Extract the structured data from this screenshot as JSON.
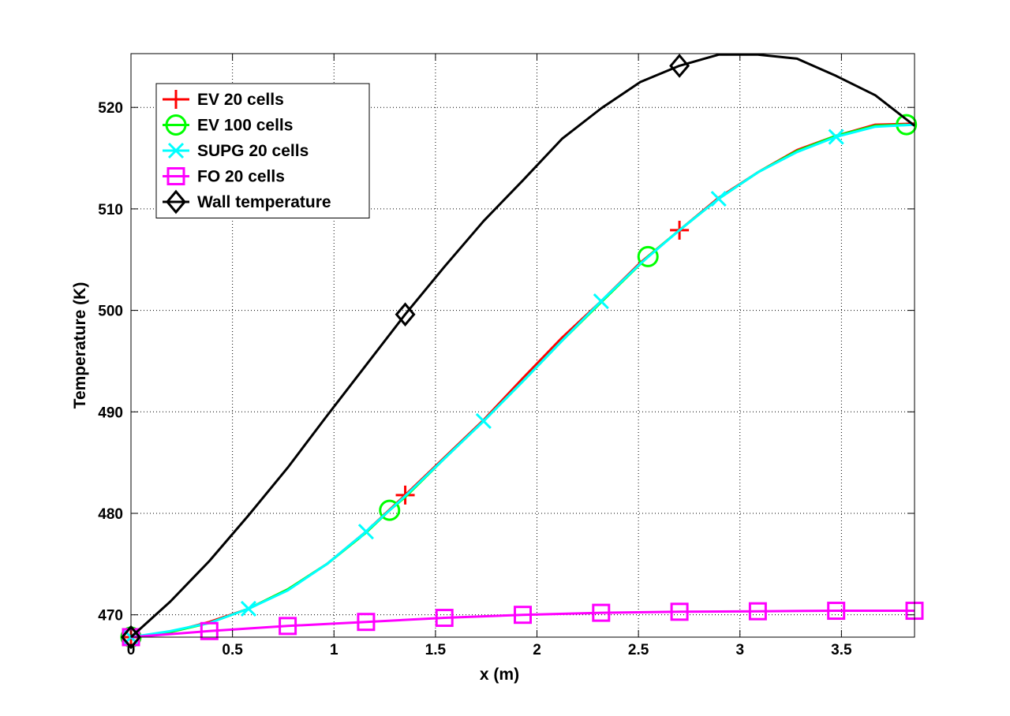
{
  "chart_data": {
    "type": "line",
    "title": "",
    "xlabel": "x (m)",
    "ylabel": "Temperature (K)",
    "xlim": [
      0,
      3.86
    ],
    "ylim": [
      467.8,
      525.3
    ],
    "grid": true,
    "legend_position": "top-left",
    "x_ticks": [
      {
        "value": 0,
        "label": "0"
      },
      {
        "value": 0.5,
        "label": "0.5"
      },
      {
        "value": 1,
        "label": "1"
      },
      {
        "value": 1.5,
        "label": "1.5"
      },
      {
        "value": 2,
        "label": "2"
      },
      {
        "value": 2.5,
        "label": "2.5"
      },
      {
        "value": 3,
        "label": "3"
      },
      {
        "value": 3.5,
        "label": "3.5"
      }
    ],
    "y_ticks": [
      {
        "value": 470,
        "label": "470"
      },
      {
        "value": 480,
        "label": "480"
      },
      {
        "value": 490,
        "label": "490"
      },
      {
        "value": 500,
        "label": "500"
      },
      {
        "value": 510,
        "label": "510"
      },
      {
        "value": 520,
        "label": "520"
      }
    ],
    "series": [
      {
        "name": "EV 20 cells",
        "color": "#ff0000",
        "marker": "plus",
        "x": [
          0,
          0.193,
          0.386,
          0.579,
          0.772,
          0.965,
          1.158,
          1.351,
          1.544,
          1.737,
          1.93,
          2.123,
          2.316,
          2.509,
          2.702,
          2.895,
          3.088,
          3.281,
          3.474,
          3.667,
          3.86
        ],
        "y": [
          467.8,
          468.3,
          469.3,
          470.6,
          472.5,
          475.0,
          478.2,
          481.8,
          485.5,
          489.2,
          493.3,
          497.3,
          500.9,
          504.7,
          507.9,
          511.1,
          513.6,
          515.8,
          517.2,
          518.3,
          518.4
        ],
        "marker_x": [
          0,
          1.351,
          2.702
        ],
        "marker_y": [
          467.8,
          481.8,
          507.9
        ]
      },
      {
        "name": "EV 100 cells",
        "color": "#00ff00",
        "marker": "circle",
        "x": [
          0,
          0.193,
          0.386,
          0.579,
          0.772,
          0.965,
          1.158,
          1.274,
          1.351,
          1.544,
          1.737,
          1.93,
          2.123,
          2.316,
          2.547,
          2.702,
          2.895,
          3.088,
          3.281,
          3.474,
          3.667,
          3.82
        ],
        "y": [
          467.8,
          468.3,
          469.2,
          470.6,
          472.5,
          475.0,
          478.1,
          480.3,
          481.6,
          485.4,
          489.1,
          493.0,
          497.0,
          500.8,
          505.3,
          507.9,
          511.0,
          513.6,
          515.7,
          517.2,
          518.2,
          518.3
        ],
        "marker_x": [
          0,
          1.274,
          2.547,
          3.82
        ],
        "marker_y": [
          467.8,
          480.3,
          505.3,
          518.3
        ]
      },
      {
        "name": "SUPG 20 cells",
        "color": "#00ffff",
        "marker": "x",
        "x": [
          0,
          0.193,
          0.386,
          0.579,
          0.772,
          0.965,
          1.158,
          1.351,
          1.544,
          1.737,
          1.93,
          2.123,
          2.316,
          2.509,
          2.702,
          2.895,
          3.088,
          3.281,
          3.474,
          3.667,
          3.86
        ],
        "y": [
          467.8,
          468.4,
          469.2,
          470.6,
          472.4,
          475.0,
          478.2,
          481.7,
          485.4,
          489.1,
          493.0,
          497.0,
          500.9,
          504.6,
          507.9,
          511.0,
          513.6,
          515.6,
          517.1,
          518.1,
          518.3
        ],
        "marker_x": [
          0,
          0.579,
          1.158,
          1.737,
          2.316,
          2.895,
          3.474
        ],
        "marker_y": [
          467.8,
          470.6,
          478.2,
          489.1,
          500.9,
          511.0,
          517.1
        ]
      },
      {
        "name": "FO 20 cells",
        "color": "#ff00ff",
        "marker": "square",
        "x": [
          0,
          0.386,
          0.772,
          1.158,
          1.544,
          1.93,
          2.316,
          2.702,
          3.088,
          3.474,
          3.86
        ],
        "y": [
          467.8,
          468.4,
          468.9,
          469.3,
          469.7,
          470.0,
          470.2,
          470.3,
          470.35,
          470.4,
          470.4
        ],
        "marker_x": [
          0,
          0.386,
          0.772,
          1.158,
          1.544,
          1.93,
          2.316,
          2.702,
          3.088,
          3.474,
          3.86
        ],
        "marker_y": [
          467.8,
          468.4,
          468.9,
          469.3,
          469.7,
          470.0,
          470.2,
          470.3,
          470.35,
          470.4,
          470.4
        ]
      },
      {
        "name": "Wall temperature",
        "color": "#000000",
        "marker": "diamond",
        "x": [
          0,
          0.193,
          0.386,
          0.579,
          0.772,
          0.965,
          1.158,
          1.351,
          1.544,
          1.737,
          1.93,
          2.123,
          2.316,
          2.509,
          2.702,
          2.895,
          3.088,
          3.281,
          3.474,
          3.667,
          3.86
        ],
        "y": [
          467.8,
          471.3,
          475.3,
          479.8,
          484.5,
          489.6,
          494.6,
          499.6,
          504.3,
          508.8,
          512.8,
          516.9,
          519.9,
          522.5,
          524.1,
          525.2,
          525.2,
          524.8,
          523.1,
          521.2,
          518.2
        ],
        "marker_x": [
          0,
          1.351,
          2.702
        ],
        "marker_y": [
          467.8,
          499.6,
          524.1
        ]
      }
    ]
  }
}
